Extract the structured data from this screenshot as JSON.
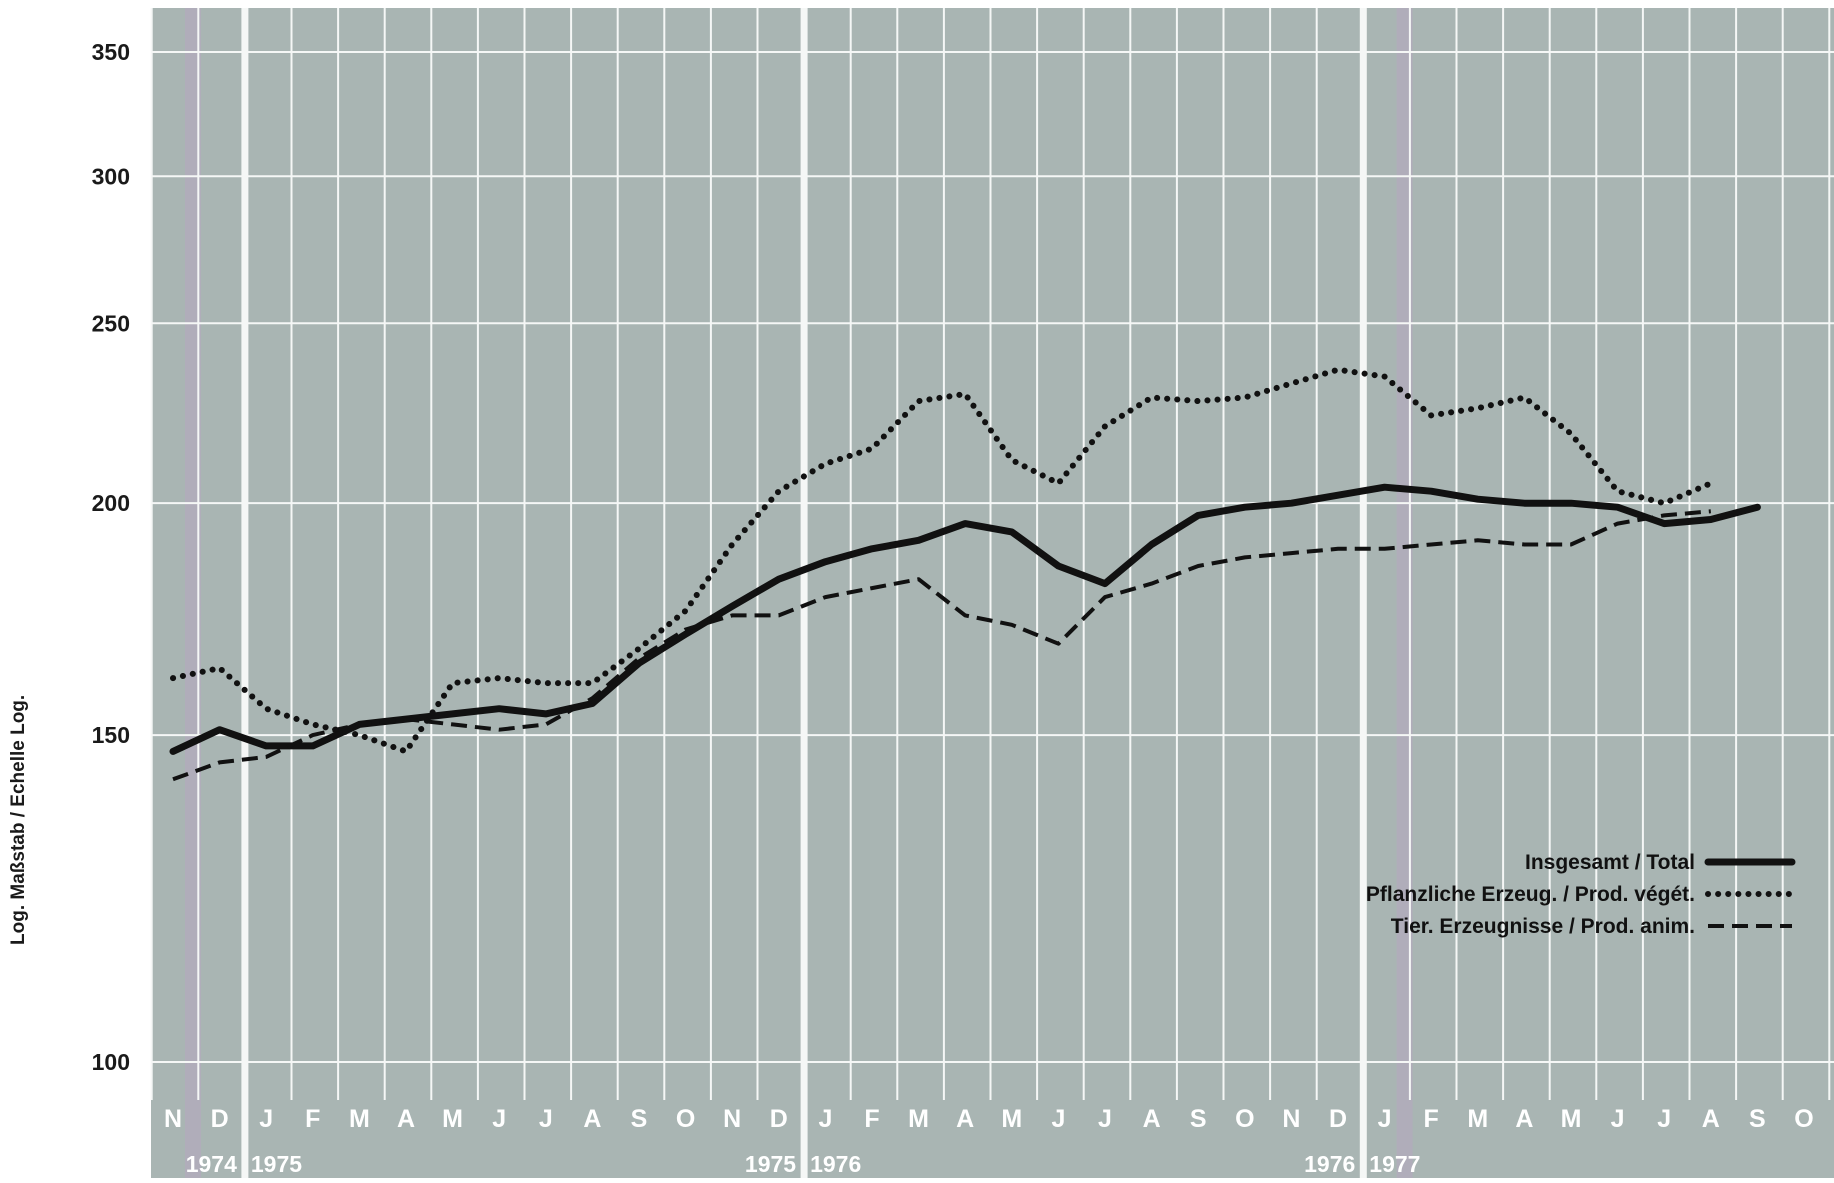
{
  "chart_data": {
    "type": "line",
    "title": "",
    "ylabel": "Log. Maßstab / Echelle Log.",
    "xlabel": "",
    "y_scale": "log",
    "ylim": [
      92,
      370
    ],
    "yticks": [
      100,
      150,
      200,
      250,
      300,
      350
    ],
    "grid": true,
    "legend_position": "bottom-right",
    "months": [
      "N",
      "D",
      "J",
      "F",
      "M",
      "A",
      "M",
      "J",
      "J",
      "A",
      "S",
      "O",
      "N",
      "D",
      "J",
      "F",
      "M",
      "A",
      "M",
      "J",
      "J",
      "A",
      "S",
      "O",
      "N",
      "D",
      "J",
      "F",
      "M",
      "A",
      "M",
      "J",
      "J",
      "A",
      "S",
      "O"
    ],
    "year_labels": [
      {
        "label": "1974",
        "month_index": 1,
        "align": "end"
      },
      {
        "label": "1975",
        "month_index": 2,
        "align": "start"
      },
      {
        "label": "1975",
        "month_index": 13,
        "align": "end"
      },
      {
        "label": "1976",
        "month_index": 14,
        "align": "start"
      },
      {
        "label": "1976",
        "month_index": 25,
        "align": "end"
      },
      {
        "label": "1977",
        "month_index": 26,
        "align": "start"
      }
    ],
    "series": [
      {
        "name": "Insgesamt / Total",
        "style": "solid",
        "values": [
          147,
          151,
          148,
          148,
          152,
          153,
          154,
          155,
          154,
          156,
          164,
          170,
          176,
          182,
          186,
          189,
          191,
          195,
          193,
          185,
          181,
          190,
          197,
          199,
          200,
          202,
          204,
          203,
          201,
          200,
          200,
          199,
          195,
          196,
          199
        ]
      },
      {
        "name": "Pflanzliche Erzeug. / Prod. végét.",
        "style": "dotted",
        "values": [
          161,
          163,
          155,
          152,
          150,
          147,
          160,
          161,
          160,
          160,
          167,
          175,
          190,
          203,
          210,
          214,
          227,
          229,
          211,
          205,
          220,
          228,
          227,
          228,
          232,
          236,
          234,
          223,
          225,
          228,
          218,
          203,
          200,
          205
        ]
      },
      {
        "name": "Tier. Erzeugnisse / Prod. anim.",
        "style": "dashed",
        "values": [
          142,
          145,
          146,
          150,
          152,
          153,
          152,
          151,
          152,
          157,
          165,
          171,
          174,
          174,
          178,
          180,
          182,
          174,
          172,
          168,
          178,
          181,
          185,
          187,
          188,
          189,
          189,
          190,
          191,
          190,
          190,
          195,
          197,
          198
        ]
      }
    ]
  },
  "colors": {
    "plot_background": "#a9b5b3",
    "grid": "#f5f7f6",
    "highlight_stripe": "#b6a5bf",
    "series_line": "#111111"
  }
}
